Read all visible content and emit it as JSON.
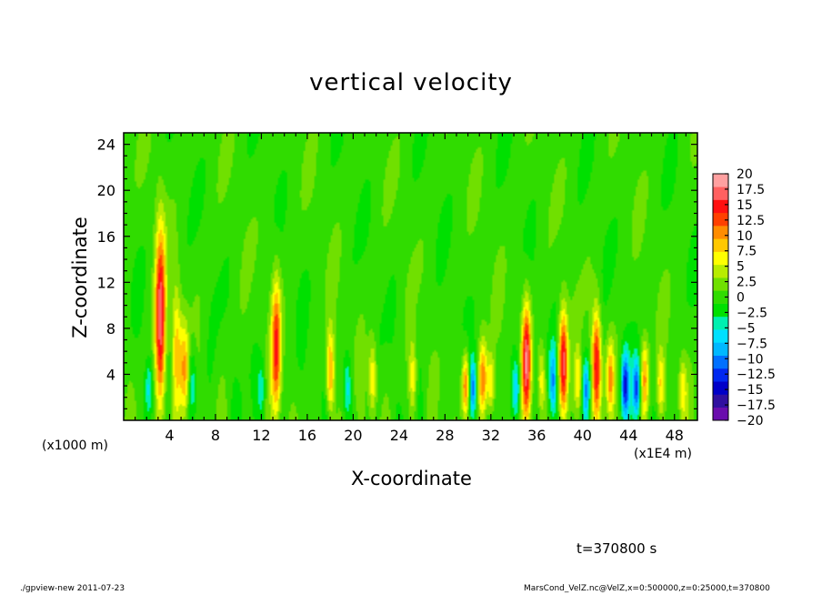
{
  "chart_data": {
    "type": "heatmap",
    "title": "vertical velocity",
    "xlabel": "X-coordinate",
    "ylabel": "Z-coordinate",
    "x_unit_left": "(x1000 m)",
    "x_unit_right": "(x1E4 m)",
    "xlim": [
      0,
      50
    ],
    "ylim": [
      0,
      25
    ],
    "xticks": [
      "4",
      "8",
      "12",
      "16",
      "20",
      "24",
      "28",
      "32",
      "36",
      "40",
      "44",
      "48"
    ],
    "yticks": [
      "4",
      "8",
      "12",
      "16",
      "20",
      "24"
    ],
    "colorbar": {
      "labels": [
        "20",
        "17.5",
        "15",
        "12.5",
        "10",
        "7.5",
        "5",
        "2.5",
        "0",
        "−2.5",
        "−5",
        "−7.5",
        "−10",
        "−12.5",
        "−15",
        "−17.5",
        "−20"
      ],
      "range": [
        -20,
        20
      ],
      "colors": [
        "#6a0dad",
        "#3010a0",
        "#0000c8",
        "#0028f0",
        "#0070ff",
        "#00b8ff",
        "#00e0ff",
        "#00f0b0",
        "#00e000",
        "#30dc00",
        "#70e000",
        "#b8ec00",
        "#ffff00",
        "#ffc800",
        "#ff8c00",
        "#ff4000",
        "#ff1010",
        "#ff6060",
        "#ffa0a0"
      ]
    },
    "plumes": [
      {
        "x": 3.2,
        "top": 15.5,
        "amp": 18
      },
      {
        "x": 4.6,
        "top": 11.0,
        "amp": 8
      },
      {
        "x": 5.3,
        "top": 8.0,
        "amp": 9
      },
      {
        "x": 13.3,
        "top": 11.5,
        "amp": 14
      },
      {
        "x": 18.0,
        "top": 7.5,
        "amp": 11
      },
      {
        "x": 21.7,
        "top": 6.5,
        "amp": 8
      },
      {
        "x": 25.2,
        "top": 6.5,
        "amp": 7
      },
      {
        "x": 29.8,
        "top": 5.5,
        "amp": 13
      },
      {
        "x": 31.3,
        "top": 6.5,
        "amp": 11
      },
      {
        "x": 32.0,
        "top": 5.5,
        "amp": 8
      },
      {
        "x": 35.1,
        "top": 9.5,
        "amp": 17
      },
      {
        "x": 36.4,
        "top": 6.0,
        "amp": 7
      },
      {
        "x": 38.3,
        "top": 9.0,
        "amp": 17
      },
      {
        "x": 39.6,
        "top": 6.0,
        "amp": 8
      },
      {
        "x": 41.2,
        "top": 9.0,
        "amp": 15
      },
      {
        "x": 42.4,
        "top": 6.5,
        "amp": 10
      },
      {
        "x": 45.4,
        "top": 6.5,
        "amp": 10
      },
      {
        "x": 46.8,
        "top": 5.5,
        "amp": 7
      },
      {
        "x": 48.7,
        "top": 5.0,
        "amp": 6
      }
    ],
    "downdrafts": [
      {
        "x": 2.2,
        "top": 5.0,
        "amp": -6
      },
      {
        "x": 6.0,
        "top": 6.0,
        "amp": -5
      },
      {
        "x": 12.0,
        "top": 5.0,
        "amp": -5
      },
      {
        "x": 19.5,
        "top": 5.0,
        "amp": -6
      },
      {
        "x": 30.4,
        "top": 5.0,
        "amp": -11
      },
      {
        "x": 34.2,
        "top": 5.0,
        "amp": -8
      },
      {
        "x": 37.4,
        "top": 6.0,
        "amp": -9
      },
      {
        "x": 40.3,
        "top": 5.0,
        "amp": -9
      },
      {
        "x": 43.7,
        "top": 5.5,
        "amp": -13
      },
      {
        "x": 44.7,
        "top": 5.0,
        "amp": -12
      }
    ]
  },
  "annotations": {
    "time": "t=370800 s",
    "footer_left": "./gpview-new   2011-07-23",
    "footer_right": "MarsCond_VelZ.nc@VelZ,x=0:500000,z=0:25000,t=370800"
  }
}
